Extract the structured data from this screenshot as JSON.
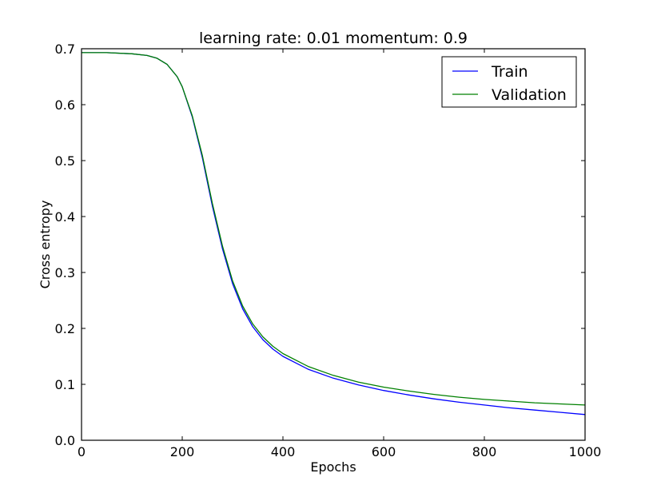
{
  "chart_data": {
    "type": "line",
    "title": "learning rate: 0.01 momentum: 0.9",
    "xlabel": "Epochs",
    "ylabel": "Cross entropy",
    "xlim": [
      0,
      1000
    ],
    "ylim": [
      0.0,
      0.7
    ],
    "xticks": [
      0,
      200,
      400,
      600,
      800,
      1000
    ],
    "xtick_labels": [
      "0",
      "200",
      "400",
      "600",
      "800",
      "1000"
    ],
    "yticks": [
      0.0,
      0.1,
      0.2,
      0.3,
      0.4,
      0.5,
      0.6,
      0.7
    ],
    "ytick_labels": [
      "0.0",
      "0.1",
      "0.2",
      "0.3",
      "0.4",
      "0.5",
      "0.6",
      "0.7"
    ],
    "grid": false,
    "legend_position": "top-right",
    "x": [
      0,
      50,
      100,
      130,
      150,
      170,
      190,
      200,
      220,
      240,
      260,
      280,
      300,
      320,
      340,
      360,
      380,
      400,
      450,
      500,
      550,
      600,
      650,
      700,
      750,
      800,
      850,
      900,
      950,
      1000
    ],
    "series": [
      {
        "name": "Train",
        "color": "#0000ff",
        "values": [
          0.693,
          0.693,
          0.691,
          0.688,
          0.683,
          0.672,
          0.65,
          0.632,
          0.578,
          0.505,
          0.418,
          0.342,
          0.28,
          0.235,
          0.203,
          0.18,
          0.163,
          0.15,
          0.127,
          0.111,
          0.099,
          0.089,
          0.081,
          0.074,
          0.068,
          0.063,
          0.058,
          0.054,
          0.05,
          0.046
        ]
      },
      {
        "name": "Validation",
        "color": "#008000",
        "values": [
          0.693,
          0.693,
          0.691,
          0.688,
          0.683,
          0.672,
          0.65,
          0.632,
          0.58,
          0.509,
          0.423,
          0.347,
          0.285,
          0.24,
          0.208,
          0.185,
          0.168,
          0.155,
          0.132,
          0.116,
          0.104,
          0.095,
          0.088,
          0.082,
          0.077,
          0.073,
          0.07,
          0.067,
          0.065,
          0.063
        ]
      }
    ]
  }
}
